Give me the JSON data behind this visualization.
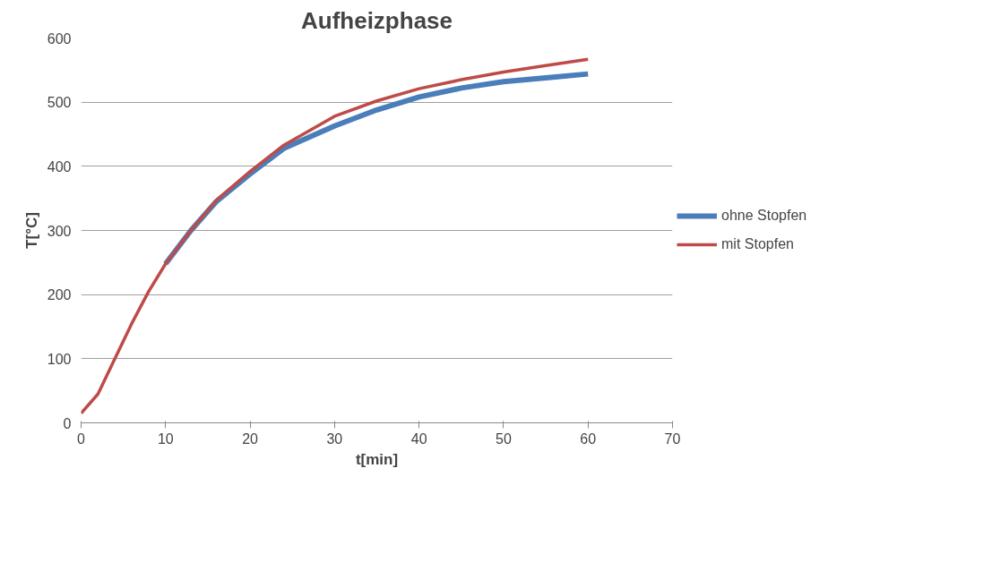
{
  "chart_data": {
    "type": "line",
    "title": "Aufheizphase",
    "xlabel": "t[min]",
    "ylabel": "T[°C]",
    "xlim": [
      0,
      70
    ],
    "xticks": [
      0,
      10,
      20,
      30,
      40,
      50,
      60,
      70
    ],
    "ylim": [
      0,
      600
    ],
    "yticks": [
      0,
      100,
      200,
      300,
      400,
      500,
      600
    ],
    "grid": "y",
    "legend": "right",
    "marker": "none",
    "line_style": "solid",
    "series": [
      {
        "name": "ohne Stopfen",
        "color": "#4a7ebb",
        "x": [
          10,
          13,
          16,
          20,
          24,
          30,
          35,
          40,
          45,
          50,
          55,
          60
        ],
        "values": [
          248,
          300,
          345,
          388,
          428,
          463,
          488,
          508,
          522,
          532,
          538,
          544
        ]
      },
      {
        "name": "mit Stopfen",
        "color": "#be4b48",
        "x": [
          0,
          2,
          4,
          6,
          8,
          10,
          13,
          16,
          20,
          24,
          30,
          35,
          40,
          45,
          50,
          55,
          60
        ],
        "values": [
          15,
          45,
          100,
          155,
          205,
          248,
          300,
          347,
          392,
          433,
          478,
          502,
          521,
          535,
          547,
          557,
          567
        ]
      }
    ]
  }
}
